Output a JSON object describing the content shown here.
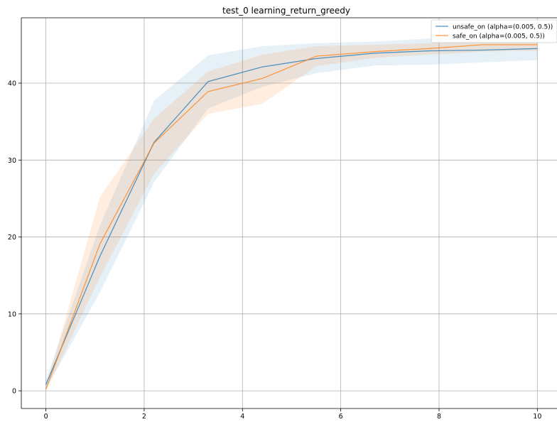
{
  "chart_data": {
    "type": "line",
    "title": "test_0 learning_return_greedy",
    "xlabel": "",
    "ylabel": "",
    "xlim": [
      -0.5,
      10.4
    ],
    "ylim": [
      -2.3,
      48.5
    ],
    "xticks": [
      0,
      2,
      4,
      6,
      8,
      10
    ],
    "yticks": [
      0,
      10,
      20,
      30,
      40
    ],
    "grid": true,
    "legend_position": "top-right",
    "x": [
      0,
      1.1,
      2.2,
      3.3,
      4.4,
      5.5,
      6.7,
      7.8,
      8.9,
      10
    ],
    "series": [
      {
        "name": "unsafe_on (alpha=(0.005, 0.5))",
        "color": "#1f77b4",
        "values": [
          0.8,
          17.5,
          32.3,
          40.2,
          42.1,
          43.2,
          43.9,
          44.2,
          44.3,
          44.5
        ],
        "lower": [
          0.2,
          12.8,
          27.1,
          36.7,
          39.5,
          41.3,
          42.3,
          42.4,
          42.7,
          43.0
        ],
        "upper": [
          1.4,
          21.5,
          37.7,
          43.6,
          44.8,
          45.2,
          45.4,
          45.8,
          46.0,
          46.3
        ]
      },
      {
        "name": "safe_on (alpha=(0.005, 0.5))",
        "color": "#ff7f0e",
        "values": [
          0.2,
          19.1,
          32.2,
          38.9,
          40.6,
          43.5,
          44.1,
          44.5,
          45.0,
          45.0
        ],
        "lower": [
          0.0,
          14.8,
          28.2,
          36.0,
          37.3,
          42.2,
          43.3,
          43.7,
          44.1,
          44.2
        ],
        "upper": [
          0.5,
          25.2,
          35.4,
          41.5,
          43.7,
          44.8,
          45.0,
          45.2,
          45.6,
          45.6
        ]
      }
    ]
  }
}
